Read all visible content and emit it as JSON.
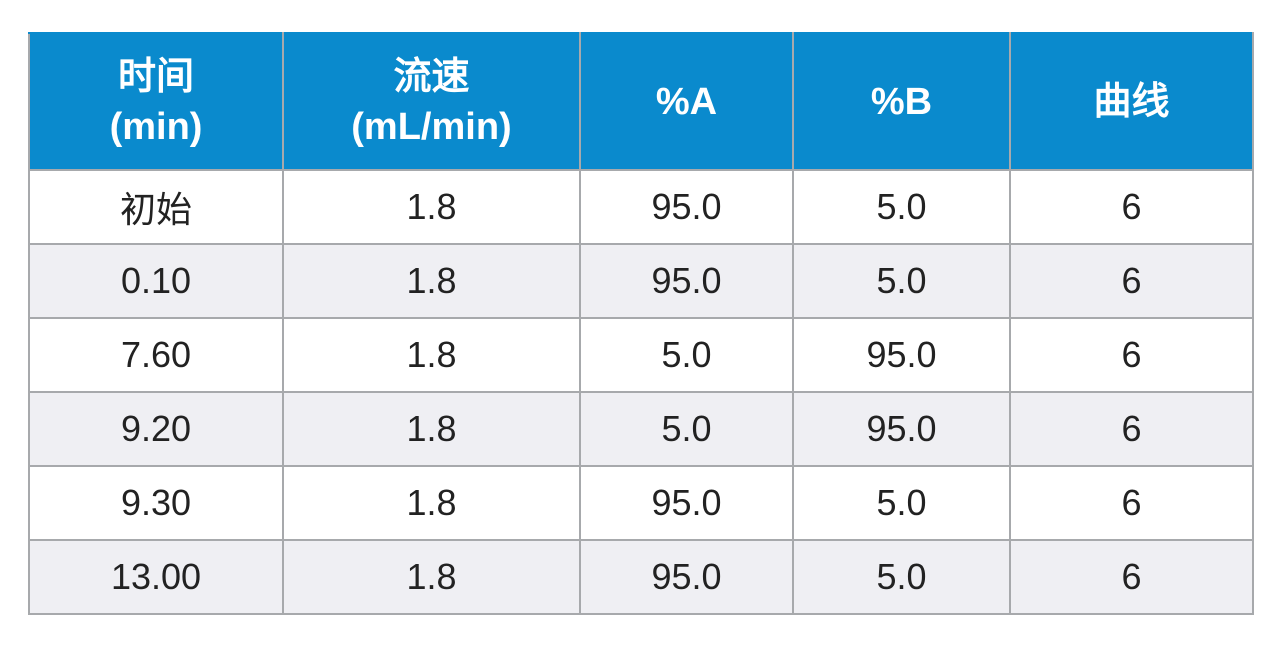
{
  "headers": [
    {
      "line1": "时间",
      "line2": "(min)"
    },
    {
      "line1": "流速",
      "line2": "(mL/min)"
    },
    {
      "line1": "%A",
      "line2": ""
    },
    {
      "line1": "%B",
      "line2": ""
    },
    {
      "line1": "曲线",
      "line2": ""
    }
  ],
  "rows": [
    [
      "初始",
      "1.8",
      "95.0",
      "5.0",
      "6"
    ],
    [
      "0.10",
      "1.8",
      "95.0",
      "5.0",
      "6"
    ],
    [
      "7.60",
      "1.8",
      "5.0",
      "95.0",
      "6"
    ],
    [
      "9.20",
      "1.8",
      "5.0",
      "95.0",
      "6"
    ],
    [
      "9.30",
      "1.8",
      "95.0",
      "5.0",
      "6"
    ],
    [
      "13.00",
      "1.8",
      "95.0",
      "5.0",
      "6"
    ]
  ],
  "colors": {
    "header_bg": "#0a8acd",
    "header_text": "#ffffff",
    "border": "#a7a9ac",
    "stripe": "#efeff3"
  }
}
